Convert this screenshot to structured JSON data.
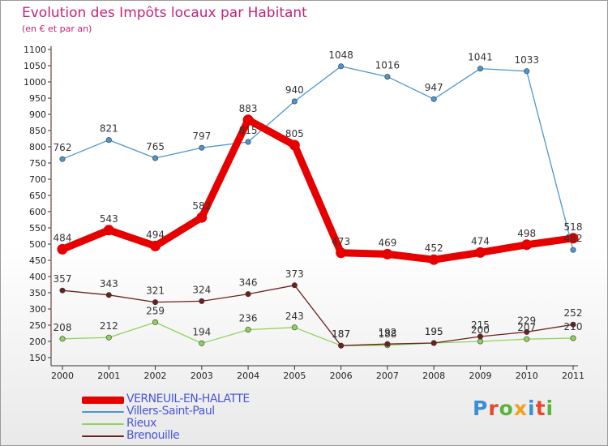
{
  "title": "Evolution des Impôts locaux par Habitant",
  "subtitle": "(en € et par an)",
  "logo": {
    "text": "Proxiti",
    "colors": [
      "#3b8fd6",
      "#e8482c",
      "#5bb33b",
      "#f2a11a",
      "#3b8fd6",
      "#e8482c",
      "#5bb33b"
    ]
  },
  "chart_data": {
    "type": "line",
    "title": "Evolution des Impôts locaux par Habitant",
    "subtitle": "(en € et par an)",
    "x": [
      "2000",
      "2001",
      "2002",
      "2003",
      "2004",
      "2005",
      "2006",
      "2007",
      "2008",
      "2009",
      "2010",
      "2011"
    ],
    "ylim": [
      150,
      1100
    ],
    "yticks": [
      150,
      200,
      250,
      300,
      350,
      400,
      450,
      500,
      550,
      600,
      650,
      700,
      750,
      800,
      850,
      900,
      950,
      1000,
      1050,
      1100
    ],
    "grid": false,
    "legend_position": "bottom-left",
    "series": [
      {
        "name": "VERNEUIL-EN-HALATTE",
        "color": "#e60000",
        "values": [
          484,
          543,
          494,
          582,
          883,
          805,
          473,
          469,
          452,
          474,
          498,
          518
        ]
      },
      {
        "name": "Villers-Saint-Paul",
        "color": "#4d96d0",
        "values": [
          762,
          821,
          765,
          797,
          815,
          940,
          1048,
          1016,
          947,
          1041,
          1033,
          482
        ]
      },
      {
        "name": "Rieux",
        "color": "#8fd35c",
        "values": [
          208,
          212,
          259,
          194,
          236,
          243,
          187,
          188,
          195,
          200,
          207,
          210
        ]
      },
      {
        "name": "Brenouille",
        "color": "#6e2020",
        "values": [
          357,
          343,
          321,
          324,
          346,
          373,
          187,
          192,
          195,
          215,
          229,
          252
        ]
      }
    ]
  }
}
